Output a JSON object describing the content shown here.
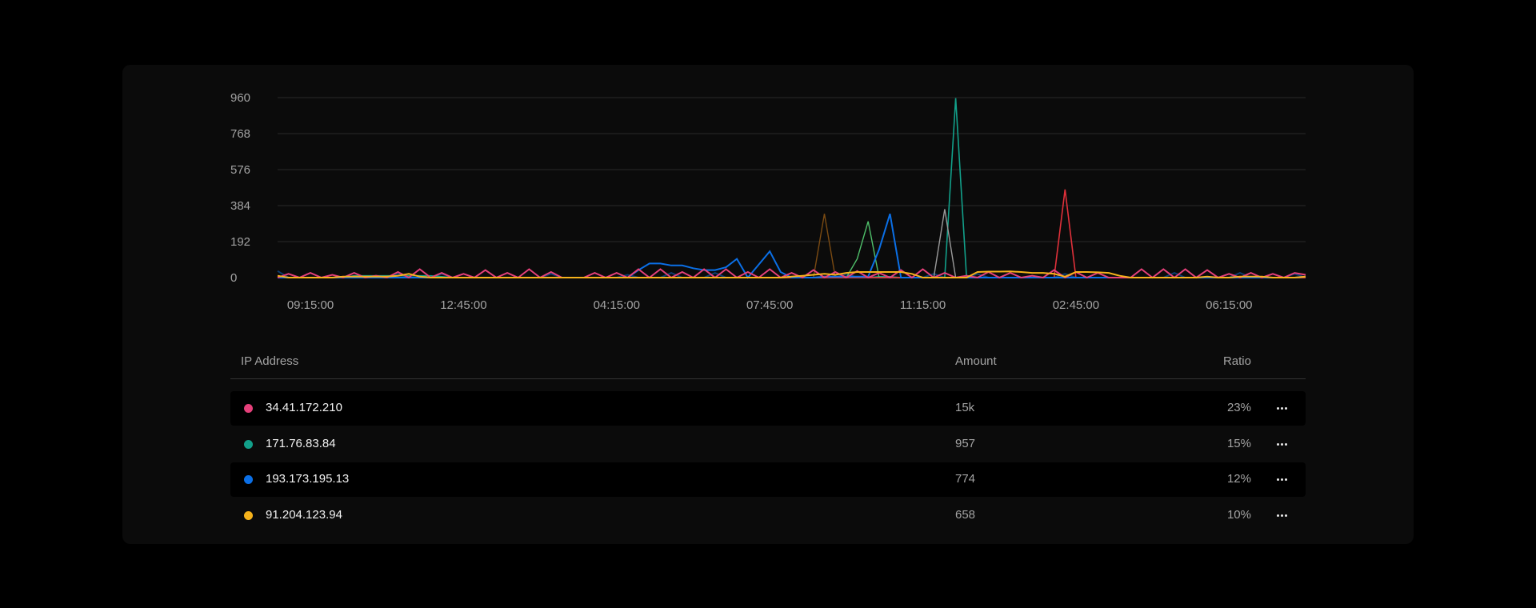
{
  "chart_data": {
    "type": "line",
    "ylim": [
      0,
      960
    ],
    "y_ticks": [
      "960",
      "768",
      "576",
      "384",
      "192",
      "0"
    ],
    "y_tick_values": [
      960,
      768,
      576,
      384,
      192,
      0
    ],
    "x_ticks": [
      "09:15:00",
      "12:45:00",
      "04:15:00",
      "07:45:00",
      "11:15:00",
      "02:45:00",
      "06:15:00"
    ],
    "x_tick_index": [
      3,
      17,
      31,
      45,
      59,
      73,
      87
    ],
    "grid": true,
    "x": [
      "08:30",
      "08:45",
      "09:00",
      "09:15",
      "09:30",
      "09:45",
      "10:00",
      "10:15",
      "10:30",
      "10:45",
      "11:00",
      "11:15",
      "11:30",
      "11:45",
      "12:00",
      "12:15",
      "12:30",
      "12:45",
      "01:00",
      "01:15",
      "01:30",
      "01:45",
      "02:00",
      "02:15",
      "02:30",
      "02:45",
      "03:00",
      "03:15",
      "03:30",
      "03:45",
      "04:00",
      "04:15",
      "04:30",
      "04:45",
      "05:00",
      "05:15",
      "05:30",
      "05:45",
      "06:00",
      "06:15",
      "06:30",
      "06:45",
      "07:00",
      "07:15",
      "07:30",
      "07:45",
      "08:00",
      "08:15",
      "08:30",
      "08:45",
      "09:00",
      "09:15",
      "09:30",
      "09:45",
      "10:00",
      "10:15",
      "10:30",
      "10:45",
      "11:00",
      "11:15",
      "11:30",
      "11:45",
      "12:00",
      "12:15",
      "12:30",
      "12:45",
      "01:00",
      "01:15",
      "01:30",
      "01:45",
      "02:00",
      "02:15",
      "02:30",
      "02:45",
      "03:00",
      "03:15",
      "03:30",
      "03:45",
      "04:00",
      "04:15",
      "04:30",
      "04:45",
      "05:00",
      "05:15",
      "05:30",
      "05:45",
      "06:00",
      "06:15",
      "06:30",
      "06:45",
      "07:00",
      "07:15",
      "07:30",
      "07:45",
      "08:00"
    ],
    "series": [
      {
        "color": "#0c3d70",
        "width": 2,
        "values": [
          35,
          0,
          0,
          0,
          0,
          0,
          0,
          25,
          0,
          0,
          0,
          20,
          0,
          0,
          0,
          20,
          0,
          0,
          0,
          0,
          0,
          0,
          0,
          0,
          0,
          20,
          0,
          0,
          0,
          0,
          0,
          0,
          15,
          0,
          0,
          0,
          25,
          0,
          0,
          0,
          25,
          0,
          0,
          0,
          0,
          0,
          0,
          0,
          0,
          0,
          0,
          0,
          20,
          0,
          0,
          0,
          0,
          0,
          0,
          0,
          20,
          0,
          0,
          0,
          20,
          0,
          0,
          0,
          0,
          0,
          0,
          0,
          20,
          0,
          0,
          0,
          0,
          0,
          0,
          0,
          0,
          0,
          25,
          0,
          0,
          0,
          0,
          0,
          25,
          0,
          0,
          0,
          0,
          20,
          0
        ]
      },
      {
        "color": "#12a08a",
        "width": 1.6,
        "values": [
          10,
          0,
          0,
          0,
          0,
          0,
          0,
          10,
          10,
          10,
          10,
          10,
          10,
          10,
          10,
          5,
          0,
          0,
          0,
          0,
          0,
          0,
          0,
          0,
          0,
          0,
          0,
          0,
          0,
          0,
          0,
          0,
          0,
          0,
          0,
          0,
          0,
          0,
          0,
          0,
          0,
          0,
          0,
          0,
          0,
          0,
          0,
          0,
          0,
          0,
          0,
          0,
          0,
          0,
          0,
          5,
          5,
          0,
          0,
          0,
          0,
          0,
          957,
          0,
          0,
          0,
          0,
          0,
          0,
          0,
          0,
          0,
          0,
          0,
          0,
          0,
          0,
          0,
          0,
          0,
          0,
          0,
          0,
          0,
          0,
          0,
          0,
          0,
          0,
          0,
          0,
          0,
          0,
          0,
          0
        ]
      },
      {
        "color": "#7a4a12",
        "width": 1.4,
        "values": [
          0,
          0,
          0,
          0,
          0,
          0,
          0,
          0,
          0,
          0,
          0,
          0,
          0,
          0,
          0,
          0,
          0,
          0,
          0,
          0,
          0,
          0,
          0,
          0,
          0,
          0,
          0,
          0,
          0,
          0,
          0,
          0,
          0,
          0,
          0,
          0,
          0,
          0,
          0,
          0,
          0,
          0,
          0,
          0,
          0,
          0,
          0,
          0,
          0,
          0,
          340,
          0,
          0,
          0,
          0,
          0,
          0,
          0,
          0,
          0,
          0,
          0,
          0,
          0,
          0,
          0,
          0,
          0,
          0,
          0,
          0,
          0,
          0,
          0,
          0,
          0,
          0,
          0,
          0,
          0,
          0,
          0,
          0,
          0,
          0,
          0,
          0,
          0,
          0,
          0,
          0,
          0,
          0,
          0,
          0
        ]
      },
      {
        "color": "#4fbf6a",
        "width": 1.4,
        "values": [
          0,
          0,
          0,
          0,
          0,
          0,
          0,
          0,
          0,
          0,
          0,
          0,
          0,
          0,
          0,
          0,
          0,
          0,
          0,
          0,
          0,
          0,
          0,
          0,
          0,
          0,
          0,
          0,
          0,
          0,
          0,
          0,
          0,
          0,
          0,
          0,
          0,
          0,
          0,
          0,
          0,
          0,
          0,
          0,
          0,
          0,
          0,
          0,
          0,
          0,
          0,
          0,
          0,
          100,
          300,
          0,
          0,
          0,
          0,
          0,
          0,
          0,
          0,
          0,
          0,
          0,
          0,
          0,
          0,
          0,
          0,
          0,
          0,
          0,
          0,
          0,
          0,
          0,
          0,
          0,
          0,
          0,
          0,
          0,
          0,
          0,
          0,
          0,
          0,
          0,
          0,
          0,
          0,
          0,
          0
        ]
      },
      {
        "color": "#9a9a9a",
        "width": 1.4,
        "values": [
          0,
          0,
          0,
          0,
          0,
          0,
          0,
          0,
          0,
          0,
          0,
          0,
          0,
          0,
          0,
          0,
          0,
          0,
          0,
          0,
          0,
          0,
          0,
          0,
          0,
          0,
          0,
          0,
          0,
          0,
          0,
          0,
          0,
          0,
          0,
          0,
          0,
          0,
          0,
          0,
          0,
          0,
          0,
          0,
          0,
          0,
          0,
          0,
          0,
          0,
          0,
          0,
          0,
          0,
          0,
          0,
          0,
          0,
          0,
          0,
          0,
          365,
          0,
          0,
          0,
          0,
          0,
          0,
          0,
          0,
          0,
          0,
          0,
          0,
          0,
          0,
          0,
          0,
          0,
          0,
          0,
          0,
          0,
          0,
          0,
          0,
          0,
          0,
          0,
          0,
          0,
          0,
          0,
          0,
          0
        ]
      },
      {
        "color": "#e0303a",
        "width": 1.6,
        "values": [
          0,
          0,
          0,
          0,
          0,
          0,
          0,
          0,
          0,
          0,
          0,
          0,
          0,
          0,
          0,
          0,
          0,
          0,
          0,
          0,
          0,
          0,
          0,
          0,
          0,
          0,
          0,
          0,
          0,
          0,
          0,
          0,
          0,
          0,
          0,
          0,
          0,
          0,
          0,
          0,
          0,
          0,
          0,
          0,
          0,
          0,
          0,
          0,
          0,
          0,
          0,
          0,
          0,
          0,
          0,
          0,
          0,
          0,
          0,
          0,
          0,
          0,
          0,
          0,
          0,
          0,
          0,
          0,
          0,
          0,
          0,
          0,
          470,
          0,
          0,
          0,
          0,
          0,
          0,
          0,
          0,
          0,
          0,
          0,
          0,
          0,
          0,
          0,
          0,
          0,
          0,
          0,
          0,
          0,
          0
        ]
      },
      {
        "color": "#0b6fe6",
        "width": 2,
        "values": [
          0,
          0,
          0,
          0,
          0,
          0,
          0,
          0,
          0,
          0,
          0,
          0,
          0,
          0,
          0,
          0,
          0,
          0,
          0,
          0,
          0,
          0,
          0,
          0,
          0,
          0,
          0,
          0,
          0,
          0,
          0,
          0,
          0,
          40,
          75,
          75,
          65,
          65,
          50,
          40,
          40,
          55,
          100,
          0,
          70,
          140,
          30,
          0,
          0,
          0,
          5,
          5,
          5,
          5,
          5,
          150,
          340,
          0,
          0,
          0,
          0,
          0,
          0,
          0,
          0,
          0,
          0,
          0,
          0,
          0,
          0,
          0,
          0,
          0,
          0,
          0,
          0,
          0,
          0,
          0,
          0,
          0,
          0,
          0,
          0,
          0,
          0,
          0,
          0,
          0,
          0,
          0,
          0,
          0,
          5
        ]
      },
      {
        "color": "#e5407a",
        "width": 2,
        "values": [
          0,
          20,
          0,
          25,
          0,
          15,
          0,
          25,
          0,
          10,
          0,
          30,
          0,
          45,
          0,
          25,
          0,
          20,
          0,
          40,
          0,
          25,
          0,
          45,
          0,
          30,
          0,
          0,
          0,
          25,
          0,
          25,
          0,
          45,
          0,
          45,
          0,
          30,
          0,
          45,
          0,
          45,
          0,
          30,
          0,
          45,
          0,
          25,
          0,
          40,
          0,
          30,
          0,
          35,
          0,
          25,
          0,
          40,
          0,
          45,
          0,
          25,
          0,
          10,
          0,
          30,
          0,
          25,
          0,
          10,
          0,
          40,
          0,
          30,
          0,
          25,
          0,
          0,
          0,
          45,
          0,
          45,
          0,
          45,
          0,
          40,
          0,
          20,
          0,
          25,
          0,
          20,
          0,
          25,
          15
        ]
      },
      {
        "color": "#f6b21b",
        "width": 2,
        "values": [
          10,
          0,
          0,
          0,
          0,
          0,
          5,
          5,
          5,
          5,
          5,
          10,
          20,
          5,
          0,
          0,
          0,
          0,
          0,
          0,
          0,
          0,
          0,
          0,
          0,
          0,
          0,
          0,
          0,
          0,
          0,
          0,
          0,
          0,
          0,
          0,
          0,
          0,
          0,
          0,
          0,
          0,
          0,
          0,
          0,
          0,
          0,
          5,
          10,
          15,
          20,
          15,
          25,
          30,
          30,
          30,
          30,
          30,
          20,
          0,
          0,
          0,
          0,
          0,
          30,
          32,
          32,
          33,
          30,
          25,
          25,
          20,
          5,
          30,
          30,
          28,
          25,
          10,
          0,
          0,
          0,
          0,
          0,
          0,
          0,
          5,
          0,
          0,
          5,
          5,
          5,
          0,
          0,
          0,
          5
        ]
      }
    ]
  },
  "table": {
    "headers": {
      "ip": "IP Address",
      "amount": "Amount",
      "ratio": "Ratio"
    },
    "rows": [
      {
        "ip": "34.41.172.210",
        "amount": "15k",
        "ratio": "23%",
        "color": "#e5407a"
      },
      {
        "ip": "171.76.83.84",
        "amount": "957",
        "ratio": "15%",
        "color": "#12a08a"
      },
      {
        "ip": "193.173.195.13",
        "amount": "774",
        "ratio": "12%",
        "color": "#0b6fe6"
      },
      {
        "ip": "91.204.123.94",
        "amount": "658",
        "ratio": "10%",
        "color": "#f6b21b"
      }
    ],
    "row_action_icon": "more-horizontal-icon"
  }
}
